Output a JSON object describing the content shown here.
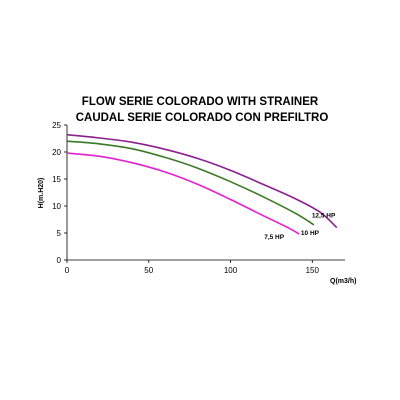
{
  "chart_data": {
    "type": "line",
    "title": "FLOW SERIE COLORADO WITH STRAINER",
    "subtitle": "CAUDAL SERIE COLORADO CON PREFILTRO",
    "xlabel": "Q(m3/h)",
    "ylabel": "H(m.H20)",
    "xlim": [
      0,
      170
    ],
    "ylim": [
      0,
      25
    ],
    "xticks": [
      "0",
      "50",
      "100",
      "150"
    ],
    "yticks": [
      "0",
      "5",
      "10",
      "15",
      "20",
      "25"
    ],
    "grid": false,
    "series": [
      {
        "name": "12,5 HP",
        "color": "#8b1f8f",
        "x": [
          0,
          20,
          40,
          60,
          80,
          100,
          120,
          140,
          155,
          165
        ],
        "y": [
          23.2,
          22.6,
          21.8,
          20.5,
          18.8,
          16.6,
          14.0,
          11.3,
          8.8,
          6.0
        ]
      },
      {
        "name": "10 HP",
        "color": "#3a7a25",
        "x": [
          0,
          20,
          40,
          60,
          80,
          100,
          120,
          140,
          151
        ],
        "y": [
          22.0,
          21.5,
          20.6,
          19.0,
          17.0,
          14.5,
          11.7,
          8.6,
          6.5
        ]
      },
      {
        "name": "7,5 HP",
        "color": "#e61fd0",
        "x": [
          0,
          20,
          40,
          60,
          80,
          100,
          120,
          135,
          142
        ],
        "y": [
          19.8,
          19.2,
          18.0,
          16.3,
          14.0,
          11.2,
          8.2,
          6.0,
          4.8
        ]
      }
    ]
  }
}
